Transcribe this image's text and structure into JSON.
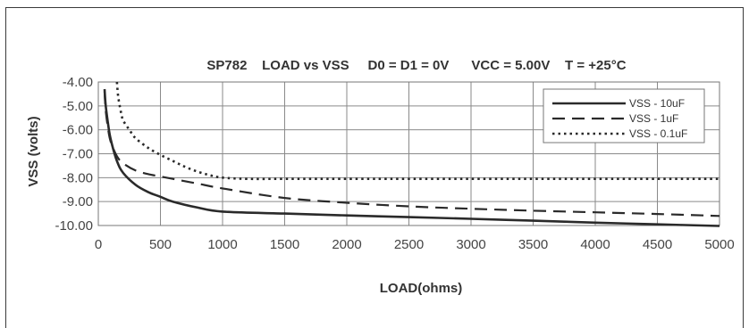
{
  "chart_data": {
    "type": "line",
    "title": "SP782    LOAD vs VSS     D0 = D1 = 0V      VCC = 5.00V    T = +25°C",
    "xlabel": "LOAD(ohms)",
    "ylabel": "VSS (volts)",
    "xlim": [
      0,
      5000
    ],
    "ylim": [
      -10,
      -4
    ],
    "x_ticks": [
      "0",
      "500",
      "1000",
      "1500",
      "2000",
      "2500",
      "3000",
      "3500",
      "4000",
      "4500",
      "5000"
    ],
    "y_ticks": [
      "-4.00",
      "-5.00",
      "-6.00",
      "-7.00",
      "-8.00",
      "-9.00",
      "-10.00"
    ],
    "grid": true,
    "legend_position": "top-right",
    "series": [
      {
        "name": "VSS - 10uF",
        "style": "solid",
        "x": [
          50,
          60,
          80,
          100,
          150,
          200,
          300,
          400,
          500,
          600,
          800,
          1000,
          1500,
          2000,
          2500,
          3000,
          3500,
          4000,
          4500,
          5000
        ],
        "y": [
          -4.3,
          -5.0,
          -5.8,
          -6.4,
          -7.3,
          -7.8,
          -8.3,
          -8.6,
          -8.8,
          -9.0,
          -9.25,
          -9.42,
          -9.5,
          -9.58,
          -9.65,
          -9.72,
          -9.8,
          -9.88,
          -9.95,
          -10.02
        ]
      },
      {
        "name": "VSS - 1uF",
        "style": "dashed",
        "x": [
          50,
          60,
          80,
          100,
          150,
          200,
          300,
          400,
          500,
          600,
          800,
          1000,
          1500,
          2000,
          2500,
          3000,
          3500,
          4000,
          4500,
          5000
        ],
        "y": [
          -4.4,
          -5.2,
          -6.0,
          -6.5,
          -7.1,
          -7.4,
          -7.7,
          -7.85,
          -7.95,
          -8.05,
          -8.25,
          -8.45,
          -8.85,
          -9.05,
          -9.2,
          -9.3,
          -9.38,
          -9.45,
          -9.52,
          -9.6
        ]
      },
      {
        "name": "VSS - 0.1uF",
        "style": "dotted",
        "x": [
          150,
          160,
          180,
          200,
          250,
          300,
          400,
          500,
          600,
          700,
          800,
          900,
          1000,
          1200,
          1500,
          2000,
          3000,
          4000,
          5000
        ],
        "y": [
          -4.0,
          -4.6,
          -5.2,
          -5.6,
          -6.0,
          -6.35,
          -6.75,
          -7.05,
          -7.3,
          -7.55,
          -7.75,
          -7.9,
          -8.0,
          -8.05,
          -8.05,
          -8.05,
          -8.05,
          -8.05,
          -8.05
        ]
      }
    ]
  }
}
